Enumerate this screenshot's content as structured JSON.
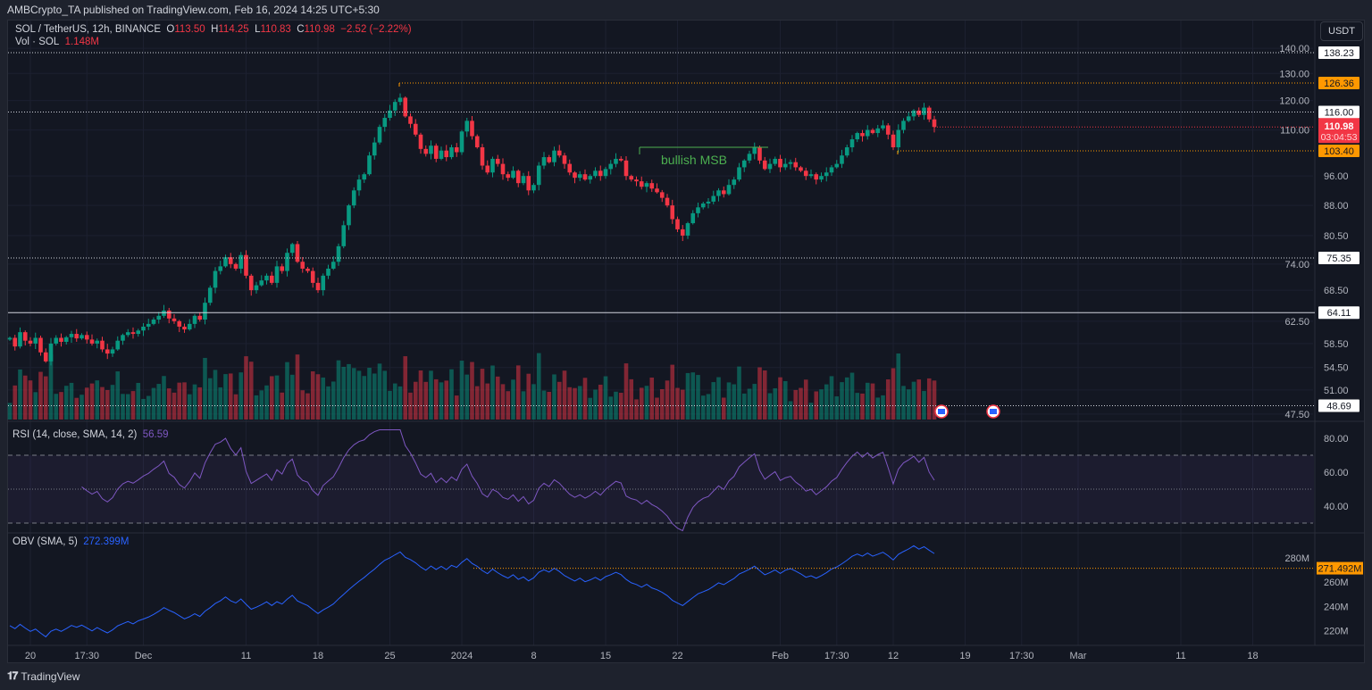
{
  "header": {
    "publish_line": "AMBCrypto_TA published on TradingView.com, Feb 16, 2024 14:25 UTC+5:30",
    "symbol": "SOL / TetherUS, 12h, BINANCE",
    "open_label": "O",
    "open": "113.50",
    "high_label": "H",
    "high": "114.25",
    "low_label": "L",
    "low": "110.83",
    "close_label": "C",
    "close": "110.98",
    "change": "−2.52 (−2.22%)",
    "volume_label": "Vol · SOL",
    "volume": "1.148M"
  },
  "currency_button": "USDT",
  "annotation": {
    "text": "bullish MSB",
    "color": "#4caf50",
    "level": 104.5
  },
  "last_price": {
    "price": "110.98",
    "countdown": "03:04:53",
    "color": "#f23645"
  },
  "colors": {
    "up": "#089981",
    "down": "#f23645",
    "orange": "#ff9800",
    "rsi": "#7e57c2",
    "obv": "#2962ff"
  },
  "footer": {
    "brand": "TradingView"
  },
  "chart_data": [
    {
      "type": "candlestick",
      "title": "SOL / TetherUS, 12h, BINANCE",
      "scale": "log",
      "start": "Nov 18 2023",
      "interval": "12h",
      "closes": [
        59.5,
        58.0,
        60.5,
        59.0,
        58.5,
        59.5,
        57.0,
        55.5,
        58.5,
        59.5,
        58.8,
        59.6,
        60.2,
        59.4,
        60.0,
        59.2,
        58.5,
        59.0,
        57.5,
        56.8,
        57.5,
        59.0,
        60.0,
        60.5,
        60.2,
        60.8,
        61.5,
        62.0,
        62.8,
        63.5,
        64.5,
        63.0,
        62.5,
        61.5,
        61.0,
        62.0,
        63.5,
        62.8,
        66.0,
        69.0,
        72.5,
        73.5,
        75.5,
        74.0,
        73.0,
        76.0,
        71.5,
        68.5,
        69.5,
        70.5,
        71.5,
        70.0,
        73.5,
        72.5,
        76.5,
        78.5,
        74.5,
        73.0,
        72.5,
        70.0,
        68.5,
        71.5,
        73.0,
        74.5,
        78.0,
        83.0,
        88.0,
        92.0,
        95.0,
        96.5,
        102.0,
        106.0,
        111.0,
        114.0,
        116.5,
        119.5,
        121.0,
        114.5,
        112.0,
        108.5,
        104.0,
        102.5,
        105.0,
        101.0,
        103.5,
        101.5,
        104.5,
        103.0,
        109.5,
        113.0,
        108.0,
        104.5,
        99.0,
        97.0,
        101.0,
        99.5,
        96.5,
        95.5,
        97.5,
        94.0,
        96.0,
        92.0,
        93.5,
        99.0,
        101.5,
        100.0,
        103.5,
        102.0,
        99.5,
        97.0,
        95.5,
        96.5,
        95.0,
        96.0,
        97.5,
        96.0,
        98.0,
        99.5,
        101.0,
        100.5,
        96.0,
        95.0,
        94.5,
        93.0,
        94.0,
        92.5,
        91.5,
        90.0,
        88.0,
        84.5,
        82.0,
        80.5,
        83.5,
        86.0,
        87.5,
        88.5,
        89.0,
        90.5,
        92.0,
        91.0,
        93.5,
        95.0,
        98.5,
        100.5,
        102.5,
        104.5,
        100.5,
        98.0,
        99.5,
        101.0,
        98.5,
        99.5,
        100.0,
        98.5,
        97.5,
        96.0,
        96.5,
        95.0,
        96.0,
        97.0,
        98.5,
        99.5,
        102.0,
        104.5,
        107.0,
        109.0,
        108.0,
        110.0,
        109.0,
        110.5,
        111.5,
        108.5,
        104.5,
        110.0,
        113.0,
        114.5,
        116.5,
        115.0,
        117.5,
        113.5,
        110.98
      ],
      "price_ticks": [
        "140.00",
        "130.00",
        "120.00",
        "110.00",
        "96.00",
        "88.00",
        "80.50",
        "74.00",
        "68.50",
        "62.50",
        "58.50",
        "54.50",
        "51.00",
        "47.50"
      ],
      "levels": [
        {
          "price": 138.23,
          "label": "138.23",
          "style": "white-dotted"
        },
        {
          "price": 126.36,
          "label": "126.36",
          "style": "orange-dotted"
        },
        {
          "price": 116.0,
          "label": "116.00",
          "style": "white-dotted"
        },
        {
          "price": 103.4,
          "label": "103.40",
          "style": "orange-dotted"
        },
        {
          "price": 75.35,
          "label": "75.35",
          "style": "white-dotted"
        },
        {
          "price": 64.11,
          "label": "64.11",
          "style": "white-solid"
        },
        {
          "price": 48.69,
          "label": "48.69",
          "style": "white-dotted"
        }
      ],
      "x_ticks": [
        "20",
        "17:30",
        "Dec",
        "11",
        "18",
        "25",
        "2024",
        "8",
        "15",
        "22",
        "Feb",
        "17:30",
        "12",
        "19",
        "17:30",
        "Mar",
        "11",
        "18"
      ],
      "x_tick_days": [
        0,
        5.5,
        11,
        21,
        28,
        35,
        42,
        49,
        56,
        63,
        73,
        78.5,
        84,
        91,
        96.5,
        102,
        112,
        119
      ]
    },
    {
      "type": "line",
      "title": "RSI (14, close, SMA, 14, 2)",
      "value": "56.59",
      "ticks": [
        "80.00",
        "60.00",
        "40.00"
      ],
      "band": [
        30,
        70
      ],
      "mid": 50,
      "ylim": [
        25,
        85
      ]
    },
    {
      "type": "line",
      "title": "OBV (SMA, 5)",
      "value": "272.399M",
      "last_label": "271.492M",
      "ticks": [
        "280M",
        "260M",
        "240M",
        "220M"
      ],
      "range_m": [
        215,
        290
      ]
    }
  ]
}
